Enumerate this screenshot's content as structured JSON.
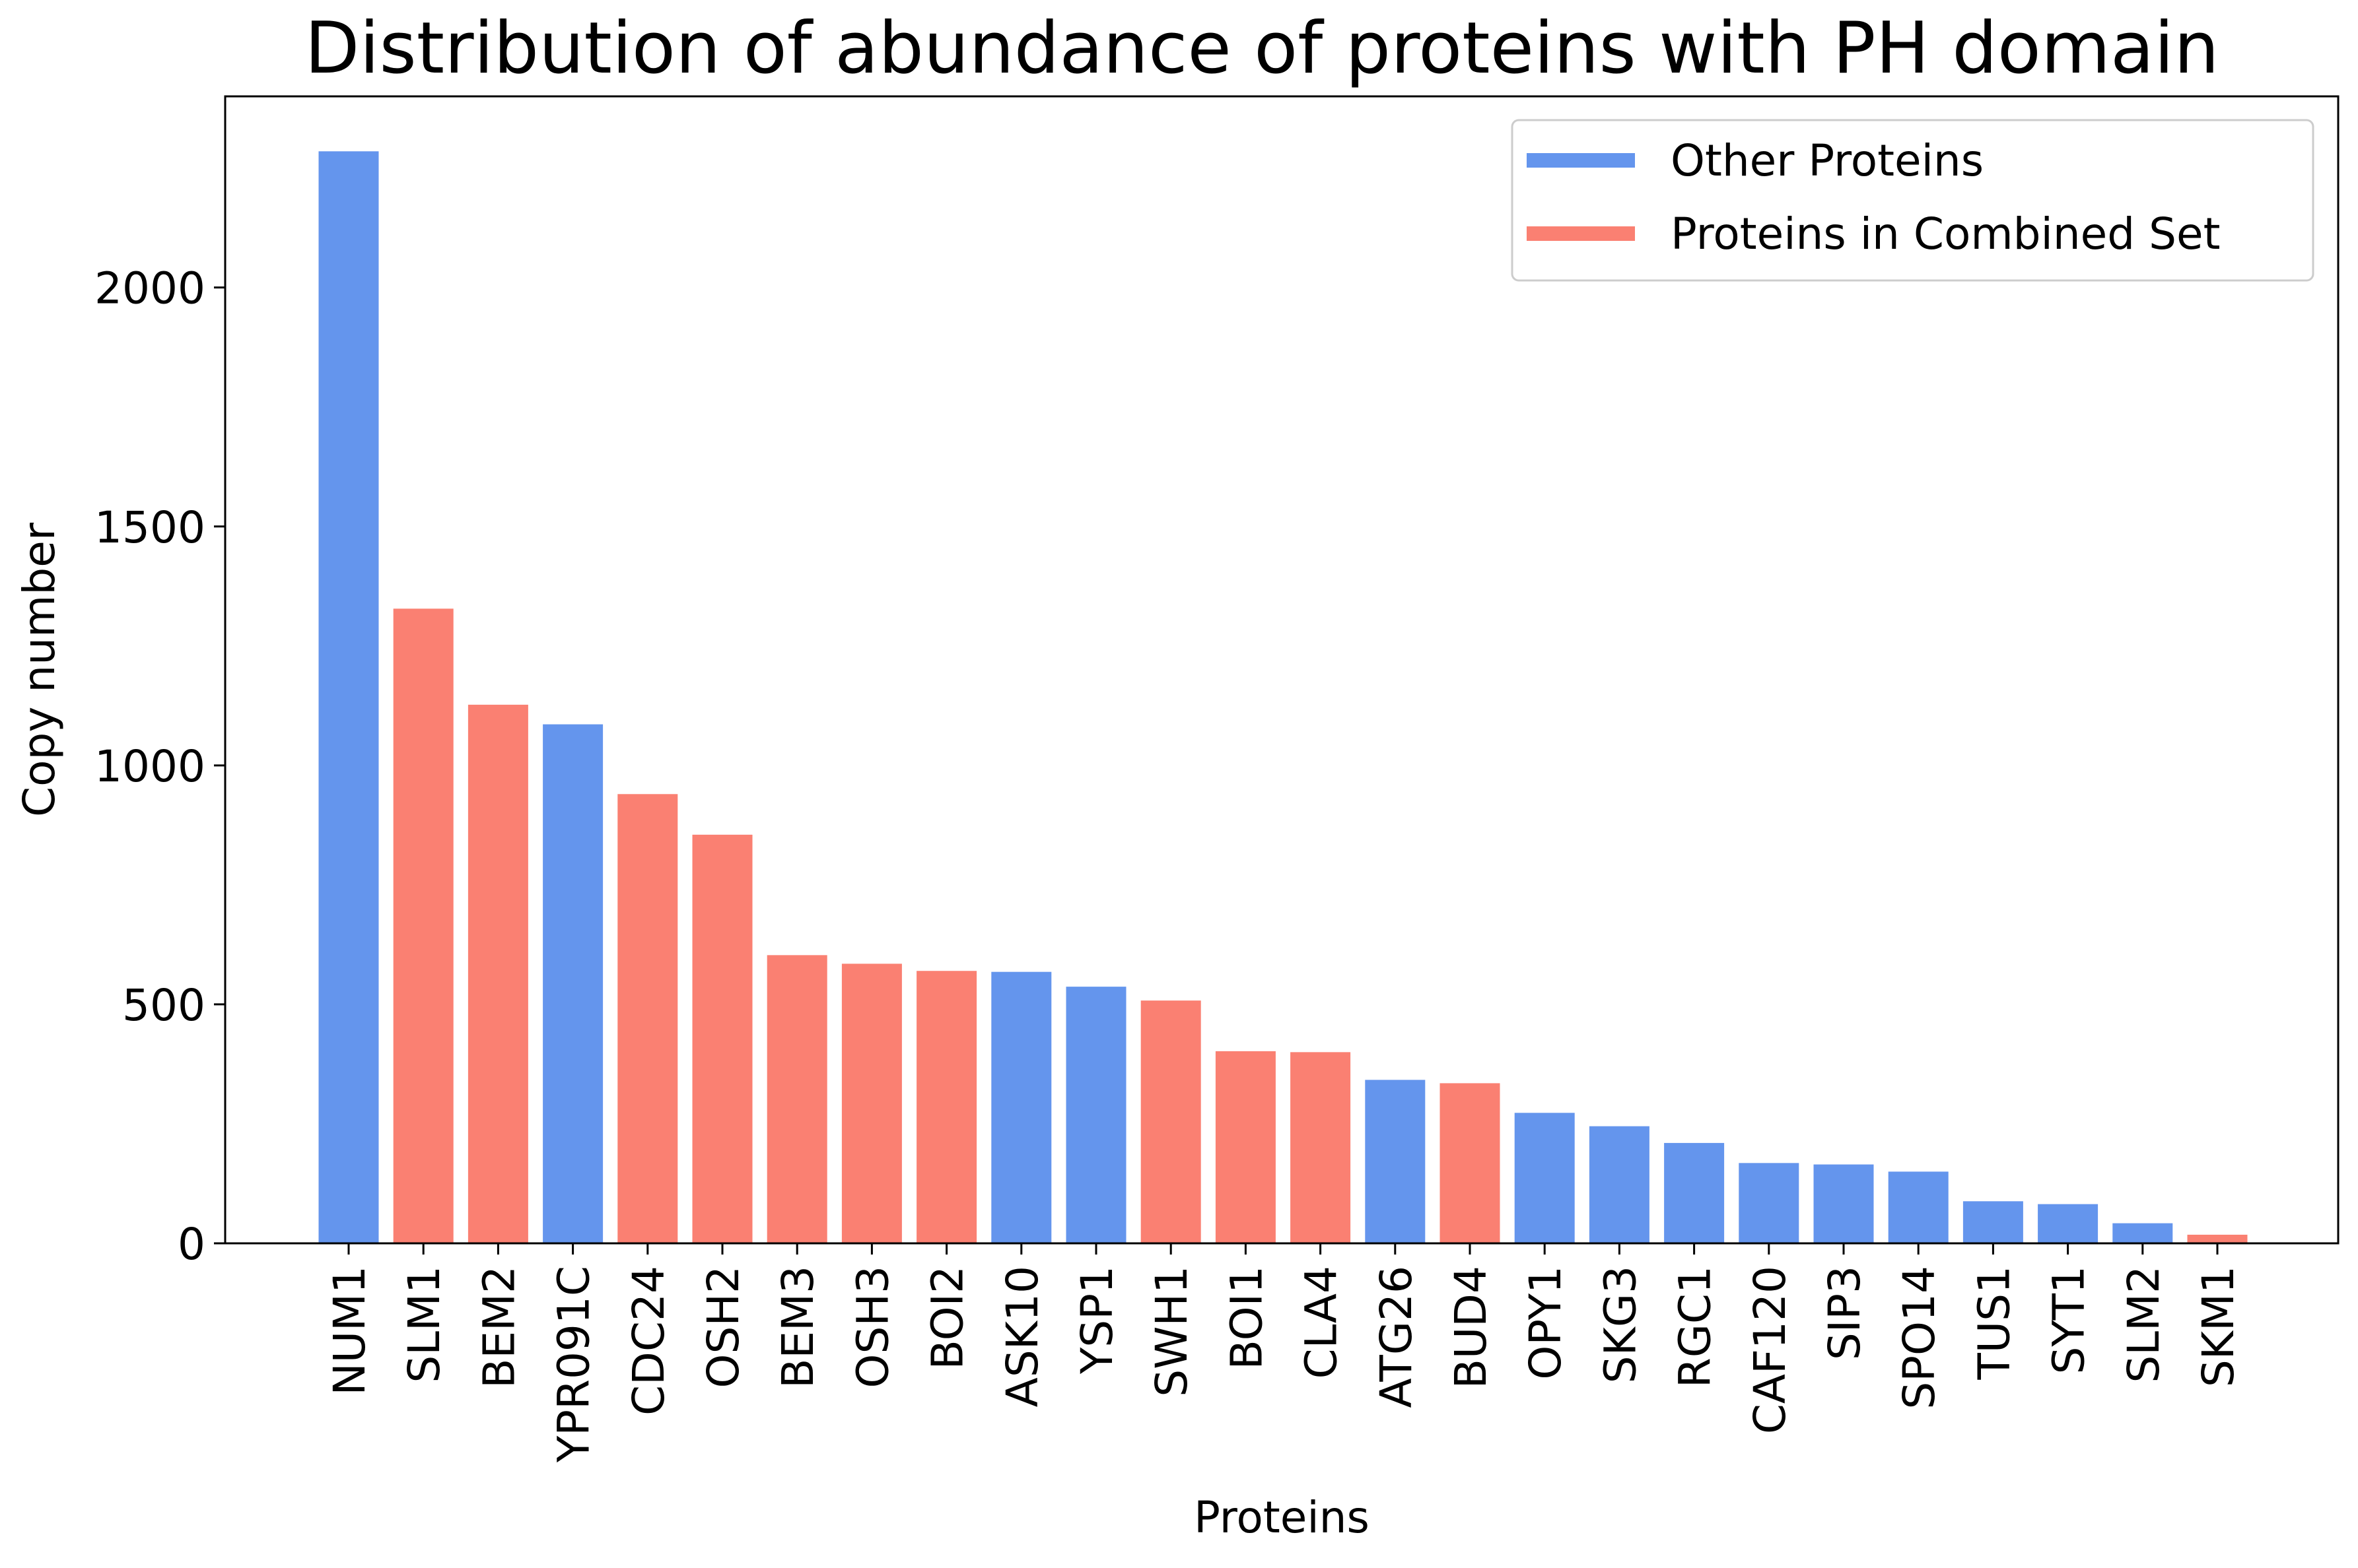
{
  "chart_data": {
    "type": "bar",
    "title": "Distribution of abundance of proteins with PH domain",
    "xlabel": "Proteins",
    "ylabel": "Copy number",
    "ylim": [
      0,
      2400
    ],
    "yticks": [
      0,
      500,
      1000,
      1500,
      2000
    ],
    "grid": false,
    "legend_position": "top-right",
    "colors": {
      "other": "#6495ED",
      "combined": "#FA8072"
    },
    "legend": [
      {
        "label": "Other Proteins",
        "group": "other"
      },
      {
        "label": "Proteins in Combined Set",
        "group": "combined"
      }
    ],
    "categories": [
      "NUM1",
      "SLM1",
      "BEM2",
      "YPR091C",
      "CDC24",
      "OSH2",
      "BEM3",
      "OSH3",
      "BOI2",
      "ASK10",
      "YSP1",
      "SWH1",
      "BOI1",
      "CLA4",
      "ATG26",
      "BUD4",
      "OPY1",
      "SKG3",
      "RGC1",
      "CAF120",
      "SIP3",
      "SPO14",
      "TUS1",
      "SYT1",
      "SLM2",
      "SKM1"
    ],
    "values": [
      2285,
      1328,
      1127,
      1086,
      940,
      855,
      603,
      585,
      570,
      568,
      537,
      508,
      402,
      400,
      342,
      335,
      273,
      245,
      210,
      168,
      165,
      150,
      88,
      82,
      42,
      18
    ],
    "groups": [
      "other",
      "combined",
      "combined",
      "other",
      "combined",
      "combined",
      "combined",
      "combined",
      "combined",
      "other",
      "other",
      "combined",
      "combined",
      "combined",
      "other",
      "combined",
      "other",
      "other",
      "other",
      "other",
      "other",
      "other",
      "other",
      "other",
      "other",
      "combined"
    ]
  }
}
